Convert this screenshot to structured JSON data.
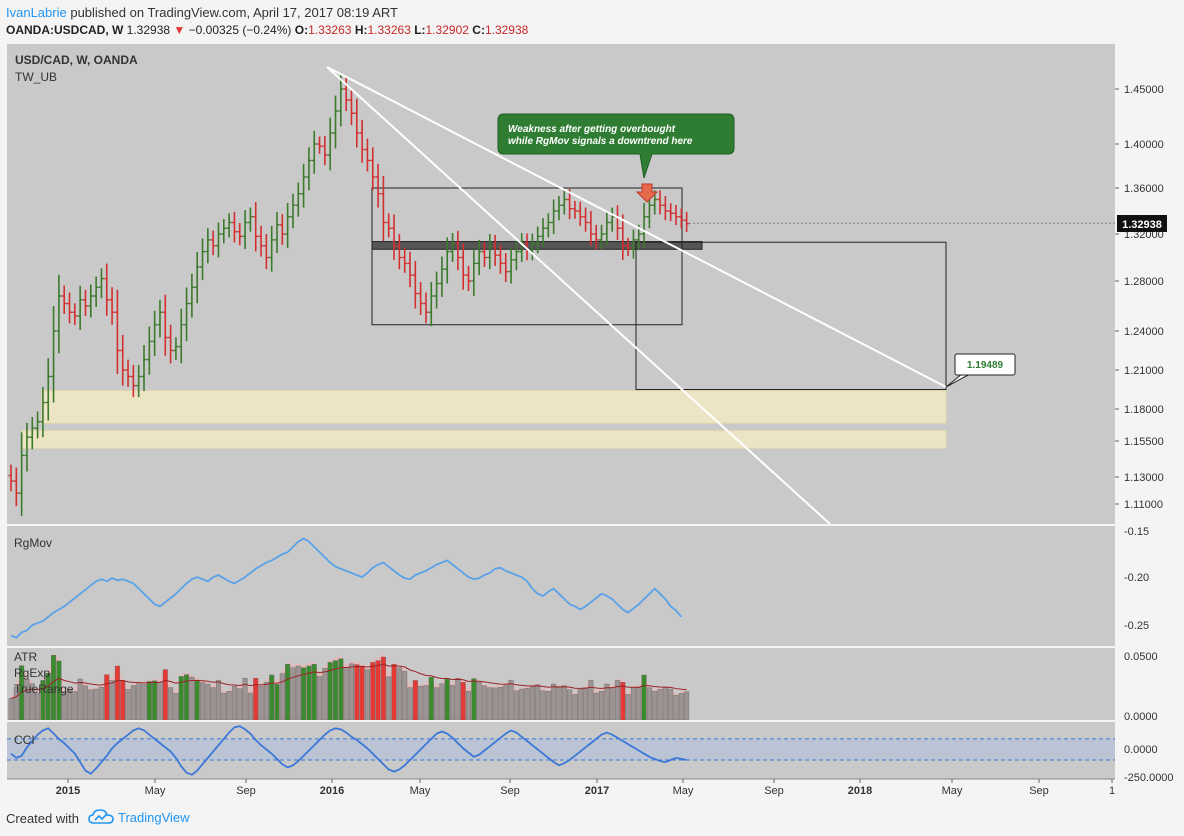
{
  "header": {
    "author": "IvanLabrie",
    "published": "published on TradingView.com, April 17, 2017 08:19 ART",
    "symbol": "OANDA:USDCAD, W",
    "last": "1.32938",
    "change": "−0.00325 (−0.24%)",
    "open_label": "O:",
    "open": "1.33263",
    "high_label": "H:",
    "high": "1.33263",
    "low_label": "L:",
    "low": "1.32902",
    "close_label": "C:",
    "close": "1.32938"
  },
  "footer": {
    "created": "Created with",
    "brand": "TradingView"
  },
  "colors": {
    "up": "#3a7a2a",
    "down": "#d32f2f",
    "flat": "#111111",
    "rgmov": "#5aa2e8",
    "cci": "#3b78d8",
    "atr_line": "#9b2226",
    "background": "#c9c9c9"
  },
  "chart_data": {
    "type": "ohlc",
    "title": "USD/CAD, W, OANDA",
    "subtitle": "TW_UB",
    "last_price": 1.32938,
    "x_ticks": [
      "2015",
      "May",
      "Sep",
      "2016",
      "May",
      "Sep",
      "2017",
      "May",
      "Sep",
      "2018",
      "May",
      "Sep",
      "1"
    ],
    "y_ticks": [
      "1.45000",
      "1.40000",
      "1.36000",
      "1.32000",
      "1.28000",
      "1.24000",
      "1.21000",
      "1.18000",
      "1.15500",
      "1.13000",
      "1.11000"
    ],
    "price_range": [
      1.097,
      1.475
    ],
    "closes_weekly": [
      1.127,
      1.118,
      1.145,
      1.158,
      1.165,
      1.17,
      1.185,
      1.205,
      1.24,
      1.268,
      1.262,
      1.255,
      1.252,
      1.265,
      1.26,
      1.268,
      1.275,
      1.282,
      1.265,
      1.255,
      1.225,
      1.21,
      1.205,
      1.198,
      1.205,
      1.218,
      1.232,
      1.245,
      1.255,
      1.235,
      1.225,
      1.228,
      1.245,
      1.262,
      1.275,
      1.292,
      1.305,
      1.315,
      1.31,
      1.32,
      1.325,
      1.33,
      1.322,
      1.318,
      1.33,
      1.335,
      1.318,
      1.31,
      1.3,
      1.315,
      1.328,
      1.32,
      1.335,
      1.345,
      1.355,
      1.37,
      1.385,
      1.4,
      1.398,
      1.39,
      1.41,
      1.43,
      1.45,
      1.44,
      1.428,
      1.41,
      1.395,
      1.385,
      1.37,
      1.355,
      1.33,
      1.325,
      1.31,
      1.3,
      1.295,
      1.285,
      1.27,
      1.262,
      1.255,
      1.268,
      1.278,
      1.29,
      1.305,
      1.312,
      1.3,
      1.285,
      1.28,
      1.295,
      1.305,
      1.3,
      1.31,
      1.302,
      1.295,
      1.288,
      1.298,
      1.305,
      1.312,
      1.306,
      1.312,
      1.318,
      1.325,
      1.33,
      1.34,
      1.345,
      1.35,
      1.342,
      1.34,
      1.335,
      1.33,
      1.32,
      1.315,
      1.32,
      1.33,
      1.335,
      1.325,
      1.31,
      1.308,
      1.315,
      1.32,
      1.335,
      1.345,
      1.35,
      1.345,
      1.34,
      1.338,
      1.335,
      1.332,
      1.329
    ],
    "horizontal_zones": [
      {
        "from": 1.169,
        "to": 1.194
      },
      {
        "from": 1.15,
        "to": 1.163
      },
      {
        "from": 1.307,
        "to": 1.311
      }
    ],
    "rectangles": [
      {
        "date_from": "2016-03",
        "date_to": "2017-04",
        "price_from": 1.245,
        "price_to": 1.36
      },
      {
        "date_from": "2017-03",
        "date_to": "2018-04",
        "price_from": 1.195,
        "price_to": 1.313
      }
    ],
    "trend_lines": [
      {
        "from": [
          0,
          1.47
        ],
        "to": [
          1,
          1.195
        ]
      },
      {
        "from": [
          0,
          1.467
        ],
        "to": [
          1,
          1.108
        ]
      }
    ],
    "annotations": [
      {
        "text": "Weakness after getting overbought while RgMov signals a downtrend here"
      },
      {
        "text": "1.19489",
        "price": 1.19489
      }
    ],
    "indicators": [
      {
        "name": "RgMov",
        "y_ticks": [
          "-0.15",
          "-0.20",
          "-0.25"
        ],
        "range": [
          -0.26,
          -0.145
        ],
        "values": [
          -0.25,
          -0.252,
          -0.247,
          -0.245,
          -0.24,
          -0.238,
          -0.236,
          -0.232,
          -0.228,
          -0.225,
          -0.222,
          -0.218,
          -0.214,
          -0.21,
          -0.206,
          -0.202,
          -0.198,
          -0.196,
          -0.198,
          -0.195,
          -0.197,
          -0.196,
          -0.198,
          -0.2,
          -0.205,
          -0.21,
          -0.215,
          -0.22,
          -0.222,
          -0.218,
          -0.214,
          -0.21,
          -0.205,
          -0.2,
          -0.196,
          -0.194,
          -0.196,
          -0.198,
          -0.194,
          -0.192,
          -0.195,
          -0.198,
          -0.2,
          -0.197,
          -0.194,
          -0.19,
          -0.186,
          -0.183,
          -0.18,
          -0.178,
          -0.175,
          -0.172,
          -0.17,
          -0.165,
          -0.16,
          -0.157,
          -0.16,
          -0.165,
          -0.17,
          -0.175,
          -0.18,
          -0.184,
          -0.186,
          -0.188,
          -0.19,
          -0.192,
          -0.194,
          -0.19,
          -0.185,
          -0.182,
          -0.18,
          -0.184,
          -0.188,
          -0.192,
          -0.195,
          -0.196,
          -0.192,
          -0.19,
          -0.188,
          -0.185,
          -0.182,
          -0.18,
          -0.178,
          -0.182,
          -0.186,
          -0.19,
          -0.194,
          -0.196,
          -0.195,
          -0.192,
          -0.19,
          -0.186,
          -0.185,
          -0.188,
          -0.19,
          -0.192,
          -0.194,
          -0.198,
          -0.205,
          -0.21,
          -0.212,
          -0.208,
          -0.205,
          -0.21,
          -0.215,
          -0.22,
          -0.222,
          -0.225,
          -0.222,
          -0.218,
          -0.214,
          -0.21,
          -0.212,
          -0.215,
          -0.22,
          -0.225,
          -0.228,
          -0.224,
          -0.22,
          -0.215,
          -0.21,
          -0.205,
          -0.21,
          -0.215,
          -0.222,
          -0.226,
          -0.232
        ]
      },
      {
        "name": "ATR",
        "extra_labels": [
          "RgExp",
          "TrueRange"
        ],
        "y_ticks": [
          "0.0500",
          "0.0000"
        ],
        "range": [
          0,
          0.06
        ]
      },
      {
        "name": "CCI",
        "y_ticks": [
          "0.0000",
          "-250.0000"
        ],
        "range": [
          -280,
          260
        ],
        "values": [
          -40,
          -80,
          -60,
          20,
          80,
          140,
          180,
          200,
          150,
          100,
          60,
          10,
          -40,
          -120,
          -200,
          -230,
          -180,
          -120,
          -60,
          10,
          60,
          100,
          140,
          180,
          200,
          180,
          140,
          100,
          60,
          20,
          -20,
          -80,
          -160,
          -220,
          -240,
          -200,
          -140,
          -80,
          -20,
          40,
          100,
          160,
          210,
          220,
          190,
          150,
          90,
          40,
          0,
          -40,
          -90,
          -140,
          -170,
          -150,
          -110,
          -60,
          -10,
          40,
          90,
          140,
          180,
          200,
          190,
          160,
          120,
          90,
          50,
          10,
          -40,
          -90,
          -140,
          -190,
          -210,
          -190,
          -150,
          -100,
          -50,
          0,
          50,
          100,
          150,
          170,
          150,
          110,
          60,
          10,
          -30,
          -70,
          -50,
          -10,
          30,
          70,
          110,
          150,
          180,
          160,
          120,
          80,
          40,
          0,
          -40,
          -80,
          -120,
          -150,
          -130,
          -100,
          -60,
          -20,
          20,
          60,
          100,
          140,
          160,
          140,
          110,
          80,
          50,
          20,
          -10,
          -40,
          -70,
          -90,
          -110,
          -120,
          -100,
          -80,
          -90,
          -100
        ]
      }
    ]
  }
}
